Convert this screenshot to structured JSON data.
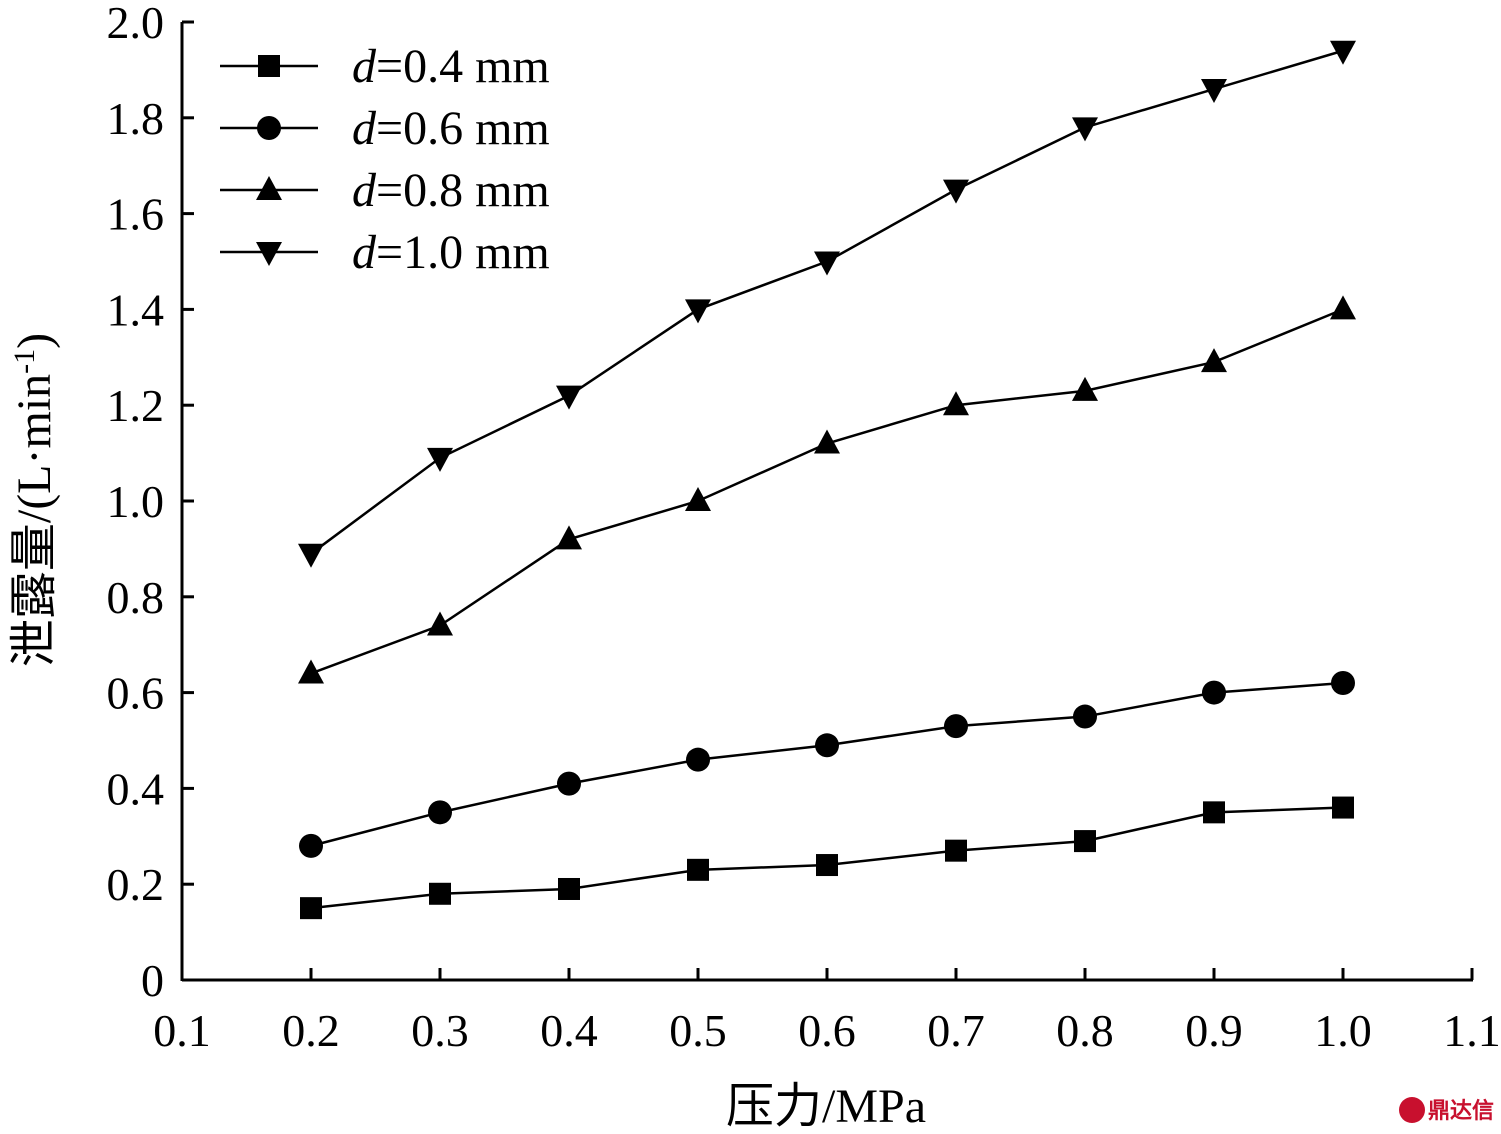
{
  "chart_data": {
    "type": "line",
    "xlabel": "压力/MPa",
    "ylabel_main": "泄露量/(L·min",
    "ylabel_sup": "-1",
    "ylabel_end": ")",
    "xlim": [
      0.1,
      1.1
    ],
    "ylim": [
      0,
      2.0
    ],
    "xticks": [
      "0.1",
      "0.2",
      "0.3",
      "0.4",
      "0.5",
      "0.6",
      "0.7",
      "0.8",
      "0.9",
      "1.0",
      "1.1"
    ],
    "yticks": [
      "0",
      "0.2",
      "0.4",
      "0.6",
      "0.8",
      "1.0",
      "1.2",
      "1.4",
      "1.6",
      "1.8",
      "2.0"
    ],
    "x": [
      0.2,
      0.3,
      0.4,
      0.5,
      0.6,
      0.7,
      0.8,
      0.9,
      1.0
    ],
    "legend_position": "top-left",
    "series": [
      {
        "var": "d",
        "name": "=0.4 mm",
        "marker": "square",
        "values": [
          0.15,
          0.18,
          0.19,
          0.23,
          0.24,
          0.27,
          0.29,
          0.35,
          0.36
        ]
      },
      {
        "var": "d",
        "name": "=0.6 mm",
        "marker": "circle",
        "values": [
          0.28,
          0.35,
          0.41,
          0.46,
          0.49,
          0.53,
          0.55,
          0.6,
          0.62
        ]
      },
      {
        "var": "d",
        "name": "=0.8 mm",
        "marker": "triangle-up",
        "values": [
          0.64,
          0.74,
          0.92,
          1.0,
          1.12,
          1.2,
          1.23,
          1.29,
          1.4
        ]
      },
      {
        "var": "d",
        "name": "=1.0 mm",
        "marker": "triangle-down",
        "values": [
          0.89,
          1.09,
          1.22,
          1.4,
          1.5,
          1.65,
          1.78,
          1.86,
          1.94
        ]
      }
    ]
  },
  "watermark": {
    "text": "鼎达信",
    "color": "#c8102e"
  }
}
